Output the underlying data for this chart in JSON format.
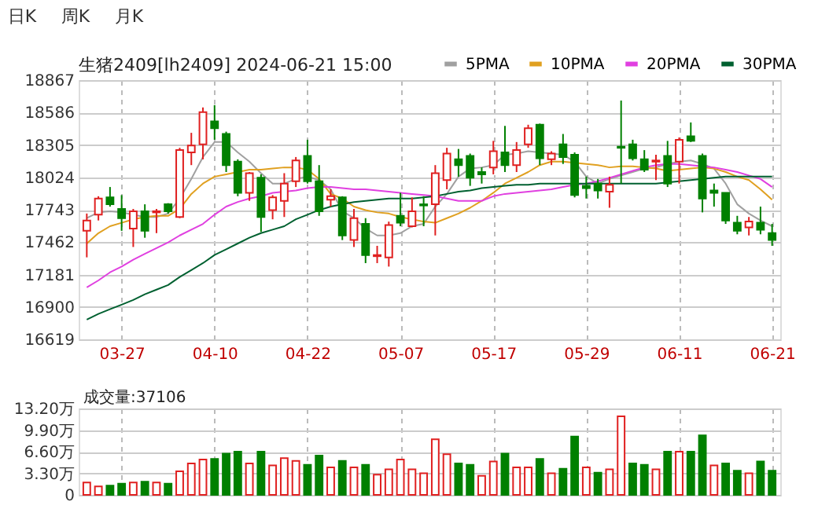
{
  "chart_data": [
    {
      "type": "candlestick",
      "title": "生猪2409[lh2409] 2024-06-21 15:00",
      "annotations": [
        "日K",
        "周K",
        "月K"
      ],
      "categories": [
        null,
        null,
        null,
        "03-27",
        null,
        null,
        null,
        null,
        null,
        null,
        null,
        "04-10",
        null,
        null,
        null,
        null,
        null,
        null,
        null,
        "04-22",
        null,
        null,
        null,
        null,
        null,
        null,
        null,
        "05-07",
        null,
        null,
        null,
        null,
        null,
        null,
        null,
        "05-17",
        null,
        null,
        null,
        null,
        null,
        null,
        null,
        "05-29",
        null,
        null,
        null,
        null,
        null,
        null,
        null,
        "06-11",
        null,
        null,
        null,
        null,
        null,
        null,
        null,
        "06-21"
      ],
      "ohlc": [
        [
          17560,
          17710,
          17330,
          17650
        ],
        [
          17700,
          17860,
          17650,
          17840
        ],
        [
          17850,
          17940,
          17770,
          17790
        ],
        [
          17750,
          17870,
          17560,
          17670
        ],
        [
          17580,
          17750,
          17420,
          17730
        ],
        [
          17730,
          17790,
          17500,
          17560
        ],
        [
          17720,
          17750,
          17540,
          17730
        ],
        [
          17790,
          17800,
          17710,
          17730
        ],
        [
          17680,
          18280,
          17670,
          18260
        ],
        [
          18240,
          18410,
          18130,
          18300
        ],
        [
          18310,
          18630,
          18180,
          18590
        ],
        [
          18510,
          18650,
          18350,
          18450
        ],
        [
          18400,
          18420,
          18070,
          18130
        ],
        [
          18160,
          18180,
          17860,
          17890
        ],
        [
          17890,
          18070,
          17820,
          18060
        ],
        [
          18020,
          18050,
          17550,
          17680
        ],
        [
          17740,
          17870,
          17660,
          17850
        ],
        [
          17820,
          18060,
          17680,
          17970
        ],
        [
          17990,
          18200,
          17940,
          18170
        ],
        [
          18210,
          18350,
          17970,
          17990
        ],
        [
          17990,
          18130,
          17690,
          17730
        ],
        [
          17830,
          17920,
          17770,
          17860
        ],
        [
          17850,
          17860,
          17480,
          17520
        ],
        [
          17480,
          17750,
          17420,
          17670
        ],
        [
          17620,
          17670,
          17280,
          17350
        ],
        [
          17340,
          17430,
          17280,
          17350
        ],
        [
          17330,
          17640,
          17250,
          17610
        ],
        [
          17690,
          17890,
          17600,
          17630
        ],
        [
          17600,
          17850,
          17590,
          17730
        ],
        [
          17790,
          17860,
          17600,
          17780
        ],
        [
          17790,
          18130,
          17520,
          18060
        ],
        [
          18000,
          18280,
          17920,
          18230
        ],
        [
          18180,
          18270,
          18030,
          18130
        ],
        [
          18210,
          18230,
          17950,
          18020
        ],
        [
          18070,
          18110,
          17970,
          18050
        ],
        [
          18110,
          18340,
          18050,
          18250
        ],
        [
          18240,
          18470,
          18070,
          18130
        ],
        [
          18130,
          18330,
          18070,
          18260
        ],
        [
          18310,
          18480,
          18280,
          18450
        ],
        [
          18480,
          18490,
          18130,
          18190
        ],
        [
          18180,
          18250,
          18130,
          18230
        ],
        [
          18310,
          18400,
          18140,
          18200
        ],
        [
          18220,
          18240,
          17850,
          17870
        ],
        [
          17950,
          18030,
          17840,
          17930
        ],
        [
          17970,
          18010,
          17840,
          17910
        ],
        [
          17900,
          18030,
          17760,
          17960
        ],
        [
          18290,
          18690,
          17970,
          18280
        ],
        [
          18310,
          18350,
          18170,
          18190
        ],
        [
          18180,
          18260,
          18070,
          18090
        ],
        [
          18160,
          18220,
          18000,
          18170
        ],
        [
          18210,
          18340,
          17940,
          17970
        ],
        [
          18160,
          18370,
          17970,
          18350
        ],
        [
          18380,
          18500,
          18330,
          18340
        ],
        [
          18210,
          18230,
          17720,
          17840
        ],
        [
          17910,
          17970,
          17770,
          17890
        ],
        [
          17890,
          17890,
          17620,
          17650
        ],
        [
          17630,
          17690,
          17530,
          17560
        ],
        [
          17590,
          17680,
          17520,
          17640
        ],
        [
          17630,
          17770,
          17530,
          17570
        ],
        [
          17540,
          17620,
          17430,
          17480
        ]
      ],
      "colors": [
        "#e02020",
        "#e02020",
        "#008000",
        "#008000",
        "#e02020",
        "#008000",
        "#e02020",
        "#008000",
        "#e02020",
        "#e02020",
        "#e02020",
        "#008000",
        "#008000",
        "#008000",
        "#e02020",
        "#008000",
        "#e02020",
        "#e02020",
        "#e02020",
        "#008000",
        "#008000",
        "#e02020",
        "#008000",
        "#e02020",
        "#008000",
        "#e02020",
        "#e02020",
        "#008000",
        "#e02020",
        "#008000",
        "#e02020",
        "#e02020",
        "#008000",
        "#008000",
        "#008000",
        "#e02020",
        "#008000",
        "#e02020",
        "#e02020",
        "#008000",
        "#e02020",
        "#008000",
        "#008000",
        "#008000",
        "#008000",
        "#e02020",
        "#008000",
        "#008000",
        "#008000",
        "#e02020",
        "#008000",
        "#e02020",
        "#008000",
        "#008000",
        "#008000",
        "#008000",
        "#008000",
        "#e02020",
        "#008000",
        "#008000"
      ],
      "series": [
        {
          "name": "5PMA",
          "type": "line",
          "color": "#a0a0a0",
          "values": [
            17670,
            17720,
            17730,
            17720,
            17700,
            17680,
            17680,
            17710,
            17840,
            18010,
            18200,
            18330,
            18330,
            18240,
            18160,
            18060,
            17970,
            17970,
            18010,
            18030,
            18000,
            17920,
            17730,
            17670,
            17580,
            17520,
            17520,
            17540,
            17600,
            17620,
            17770,
            17880,
            18030,
            18100,
            18110,
            18130,
            18220,
            18230,
            18250,
            18240,
            18230,
            18220,
            18160,
            18030,
            17970,
            18010,
            18040,
            18070,
            18100,
            18110,
            18140,
            18160,
            18170,
            18140,
            18100,
            17970,
            17790,
            17710,
            17650,
            17600
          ]
        },
        {
          "name": "10PMA",
          "type": "line",
          "color": "#e0a020",
          "values": [
            17450,
            17540,
            17600,
            17630,
            17660,
            17680,
            17690,
            17690,
            17750,
            17880,
            17970,
            18030,
            18050,
            18070,
            18090,
            18090,
            18100,
            18110,
            18110,
            18090,
            18010,
            17880,
            17840,
            17770,
            17740,
            17720,
            17710,
            17680,
            17660,
            17640,
            17630,
            17670,
            17710,
            17760,
            17820,
            17890,
            17970,
            18020,
            18070,
            18130,
            18160,
            18160,
            18150,
            18140,
            18130,
            18110,
            18120,
            18120,
            18110,
            18100,
            18080,
            18090,
            18100,
            18110,
            18100,
            18070,
            18030,
            18000,
            17920,
            17830
          ]
        },
        {
          "name": "20PMA",
          "type": "line",
          "color": "#e040e0",
          "values": [
            17070,
            17130,
            17200,
            17250,
            17310,
            17360,
            17410,
            17460,
            17520,
            17570,
            17620,
            17700,
            17770,
            17810,
            17840,
            17860,
            17890,
            17900,
            17910,
            17930,
            17940,
            17940,
            17930,
            17920,
            17920,
            17910,
            17900,
            17890,
            17880,
            17870,
            17860,
            17840,
            17820,
            17820,
            17820,
            17860,
            17880,
            17890,
            17900,
            17910,
            17920,
            17940,
            17960,
            17970,
            17990,
            18020,
            18050,
            18080,
            18110,
            18130,
            18140,
            18140,
            18130,
            18120,
            18110,
            18090,
            18070,
            18040,
            18010,
            17940
          ]
        },
        {
          "name": "30PMA",
          "type": "line",
          "color": "#006030",
          "values": [
            16790,
            16840,
            16880,
            16920,
            16960,
            17010,
            17050,
            17090,
            17160,
            17220,
            17280,
            17350,
            17400,
            17450,
            17500,
            17540,
            17570,
            17600,
            17660,
            17700,
            17740,
            17770,
            17790,
            17810,
            17820,
            17830,
            17840,
            17840,
            17840,
            17850,
            17860,
            17880,
            17900,
            17910,
            17930,
            17940,
            17950,
            17960,
            17960,
            17970,
            17970,
            17970,
            17970,
            17970,
            17970,
            17970,
            17970,
            17970,
            17970,
            17970,
            17980,
            17990,
            18000,
            18010,
            18020,
            18030,
            18030,
            18030,
            18030,
            18030
          ]
        }
      ],
      "ylim": [
        16619,
        18867
      ],
      "yticks": [
        16619,
        16900,
        17181,
        17462,
        17743,
        18024,
        18305,
        18586,
        18867
      ],
      "grid": true,
      "legend": "top right"
    },
    {
      "type": "bar",
      "title": "成交量:37106",
      "categories": [
        null,
        null,
        null,
        null,
        null,
        null,
        null,
        null,
        null,
        null,
        null,
        null,
        null,
        null,
        null,
        null,
        null,
        null,
        null,
        null,
        null,
        null,
        null,
        null,
        null,
        null,
        null,
        null,
        null,
        null,
        null,
        null,
        null,
        null,
        null,
        null,
        null,
        null,
        null,
        null,
        null,
        null,
        null,
        null,
        null,
        null,
        null,
        null,
        null,
        null,
        null,
        null,
        null,
        null,
        null,
        null,
        null,
        null,
        null,
        null
      ],
      "values": [
        1.9,
        1.3,
        1.4,
        1.7,
        1.9,
        2.0,
        1.9,
        1.7,
        3.6,
        4.8,
        5.4,
        5.5,
        6.3,
        6.6,
        4.8,
        6.6,
        4.5,
        5.6,
        5.2,
        4.6,
        6.0,
        4.2,
        5.2,
        4.2,
        4.6,
        3.1,
        3.9,
        5.4,
        3.9,
        3.3,
        8.5,
        6.2,
        4.8,
        4.6,
        2.9,
        5.1,
        6.3,
        4.2,
        4.2,
        5.5,
        3.3,
        4.0,
        8.9,
        4.2,
        3.4,
        3.9,
        12.0,
        4.8,
        4.6,
        3.9,
        6.6,
        6.6,
        6.6,
        9.1,
        4.5,
        4.8,
        3.7,
        3.3,
        5.1,
        3.7
      ],
      "colors": [
        "#e02020",
        "#e02020",
        "#008000",
        "#008000",
        "#e02020",
        "#008000",
        "#e02020",
        "#008000",
        "#e02020",
        "#e02020",
        "#e02020",
        "#008000",
        "#008000",
        "#008000",
        "#e02020",
        "#008000",
        "#e02020",
        "#e02020",
        "#e02020",
        "#008000",
        "#008000",
        "#e02020",
        "#008000",
        "#e02020",
        "#008000",
        "#e02020",
        "#e02020",
        "#e02020",
        "#e02020",
        "#e02020",
        "#e02020",
        "#e02020",
        "#008000",
        "#008000",
        "#e02020",
        "#e02020",
        "#008000",
        "#e02020",
        "#e02020",
        "#008000",
        "#e02020",
        "#008000",
        "#008000",
        "#e02020",
        "#008000",
        "#e02020",
        "#e02020",
        "#008000",
        "#008000",
        "#e02020",
        "#008000",
        "#e02020",
        "#008000",
        "#008000",
        "#e02020",
        "#008000",
        "#008000",
        "#e02020",
        "#008000",
        "#008000"
      ],
      "ylim": [
        0,
        13.2
      ],
      "yticks": [
        0,
        {
          "value": 3.3,
          "label": "3.30万"
        },
        {
          "value": 6.6,
          "label": "6.60万"
        },
        {
          "value": 9.9,
          "label": "9.90万"
        },
        {
          "value": 13.2,
          "label": "13.20万"
        }
      ],
      "grid": true,
      "tick_labels": "y"
    }
  ]
}
